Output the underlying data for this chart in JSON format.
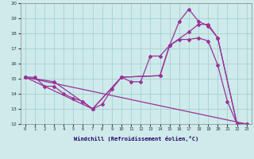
{
  "xlabel": "Windchill (Refroidissement éolien,°C)",
  "xlim": [
    -0.5,
    23.5
  ],
  "ylim": [
    12,
    20
  ],
  "xticks": [
    0,
    1,
    2,
    3,
    4,
    5,
    6,
    7,
    8,
    9,
    10,
    11,
    12,
    13,
    14,
    15,
    16,
    17,
    18,
    19,
    20,
    21,
    22,
    23
  ],
  "yticks": [
    12,
    13,
    14,
    15,
    16,
    17,
    18,
    19,
    20
  ],
  "background_color": "#ceeaea",
  "line_color": "#993399",
  "grid_color": "#a0cccc",
  "lines": [
    {
      "x": [
        0,
        1,
        2,
        3,
        4,
        5,
        6,
        7,
        8,
        9,
        10,
        11,
        12,
        13,
        14,
        15,
        16,
        17,
        18,
        19,
        20,
        21,
        22,
        23
      ],
      "y": [
        15.1,
        15.1,
        14.5,
        14.5,
        14.0,
        13.7,
        13.5,
        13.0,
        13.3,
        14.3,
        15.1,
        14.8,
        14.8,
        16.5,
        16.5,
        17.2,
        17.6,
        17.6,
        17.7,
        17.5,
        15.9,
        13.5,
        12.0,
        12.0
      ]
    },
    {
      "x": [
        0,
        3,
        7,
        10,
        14,
        15,
        16,
        17,
        18,
        19,
        20,
        22,
        23
      ],
      "y": [
        15.1,
        14.8,
        13.0,
        15.1,
        15.2,
        17.2,
        18.8,
        19.6,
        18.8,
        18.5,
        17.7,
        12.0,
        12.0
      ]
    },
    {
      "x": [
        0,
        7,
        10,
        14,
        15,
        17,
        18,
        19,
        20,
        22,
        23
      ],
      "y": [
        15.1,
        13.0,
        15.1,
        15.2,
        17.2,
        18.1,
        18.6,
        18.6,
        17.7,
        12.0,
        12.0
      ]
    },
    {
      "x": [
        0,
        23
      ],
      "y": [
        15.1,
        12.0
      ]
    }
  ]
}
